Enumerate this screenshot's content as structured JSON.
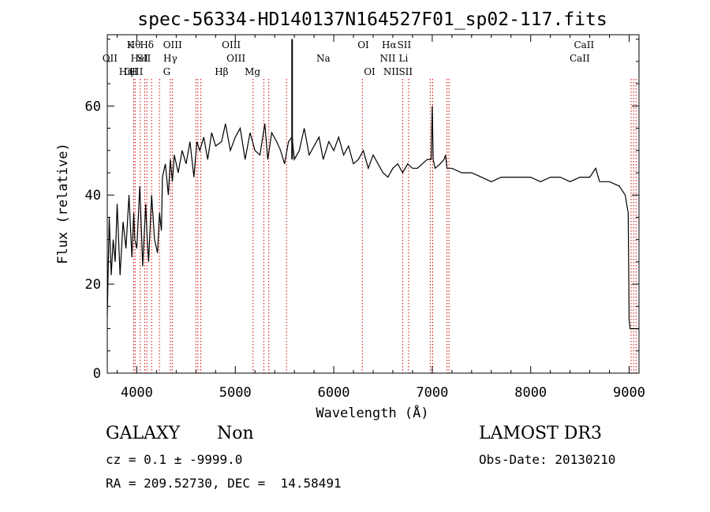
{
  "chart_data": {
    "type": "line",
    "title": "spec-56334-HD140137N164527F01_sp02-117.fits",
    "xlabel": "Wavelength (Å)",
    "ylabel": "Flux (relative)",
    "xlim": [
      3700,
      9100
    ],
    "ylim": [
      0,
      76
    ],
    "x_ticks": [
      4000,
      5000,
      6000,
      7000,
      8000,
      9000
    ],
    "y_ticks": [
      0,
      20,
      40,
      60
    ],
    "x_tick_labels": [
      "4000",
      "5000",
      "6000",
      "7000",
      "8000",
      "9000"
    ],
    "y_tick_labels": [
      "0",
      "20",
      "40",
      "60"
    ],
    "grid": false,
    "line_color": "#000000",
    "marker_color": "#cc0000",
    "spectrum": {
      "x": [
        3700,
        3720,
        3740,
        3760,
        3780,
        3800,
        3830,
        3860,
        3890,
        3920,
        3950,
        3968,
        3980,
        4000,
        4030,
        4060,
        4090,
        4101,
        4120,
        4150,
        4180,
        4210,
        4230,
        4250,
        4260,
        4290,
        4320,
        4340,
        4361,
        4380,
        4420,
        4460,
        4500,
        4540,
        4580,
        4610,
        4640,
        4680,
        4720,
        4760,
        4800,
        4861,
        4900,
        4950,
        5000,
        5050,
        5100,
        5150,
        5200,
        5250,
        5300,
        5330,
        5370,
        5420,
        5460,
        5500,
        5540,
        5577,
        5600,
        5650,
        5700,
        5750,
        5800,
        5850,
        5893,
        5950,
        6000,
        6050,
        6100,
        6150,
        6200,
        6250,
        6300,
        6350,
        6400,
        6450,
        6500,
        6550,
        6600,
        6650,
        6700,
        6750,
        6800,
        6850,
        6900,
        6950,
        6990,
        7000,
        7010,
        7030,
        7080,
        7120,
        7135,
        7150,
        7200,
        7300,
        7400,
        7500,
        7600,
        7700,
        7800,
        7900,
        8000,
        8100,
        8200,
        8300,
        8400,
        8500,
        8600,
        8660,
        8700,
        8800,
        8900,
        8960,
        8990,
        9000,
        9010,
        9100
      ],
      "y": [
        13,
        35,
        22,
        30,
        25,
        38,
        22,
        34,
        28,
        40,
        26,
        36,
        30,
        28,
        42,
        24,
        38,
        32,
        25,
        40,
        30,
        27,
        36,
        32,
        44,
        47,
        40,
        48,
        43,
        49,
        45,
        50,
        47,
        52,
        44,
        52,
        50,
        53,
        48,
        54,
        51,
        52,
        56,
        50,
        53,
        55,
        48,
        54,
        50,
        49,
        56,
        48,
        54,
        52,
        50,
        47,
        52,
        53,
        48,
        50,
        55,
        49,
        51,
        53,
        48,
        52,
        50,
        53,
        49,
        51,
        47,
        48,
        50,
        46,
        49,
        47,
        45,
        44,
        46,
        47,
        45,
        47,
        46,
        46,
        47,
        48,
        48,
        60,
        48,
        46,
        47,
        48,
        49,
        46,
        46,
        45,
        45,
        44,
        43,
        44,
        44,
        44,
        44,
        43,
        44,
        44,
        43,
        44,
        44,
        46,
        43,
        43,
        42,
        40,
        36,
        12,
        10,
        10
      ]
    },
    "spike": {
      "x": 5577,
      "y": 75
    },
    "line_ids": [
      {
        "label": "OII",
        "x": 3727,
        "row": 2
      },
      {
        "label": "OIII",
        "x": 3967,
        "row": 3
      },
      {
        "label": "Hθ",
        "x": 3970,
        "row": 1
      },
      {
        "label": "K",
        "x": 3934,
        "row": 1
      },
      {
        "label": "HeI",
        "x": 4026,
        "row": 2
      },
      {
        "label": "Hη",
        "x": 3889,
        "row": 3
      },
      {
        "label": "H",
        "x": 3968,
        "row": 3
      },
      {
        "label": "Hδ",
        "x": 4102,
        "row": 1
      },
      {
        "label": "SII",
        "x": 4072,
        "row": 2
      },
      {
        "label": "OIII",
        "x": 4363,
        "row": 1
      },
      {
        "label": "Hγ",
        "x": 4340,
        "row": 2
      },
      {
        "label": "G",
        "x": 4304,
        "row": 3
      },
      {
        "label": "OIII",
        "x": 4959,
        "row": 1
      },
      {
        "label": "OIII",
        "x": 5007,
        "row": 2
      },
      {
        "label": "Hβ",
        "x": 4861,
        "row": 3
      },
      {
        "label": "Mg",
        "x": 5175,
        "row": 3
      },
      {
        "label": "Na",
        "x": 5894,
        "row": 2
      },
      {
        "label": "OI",
        "x": 6300,
        "row": 1
      },
      {
        "label": "OI",
        "x": 6364,
        "row": 3
      },
      {
        "label": "Hα",
        "x": 6563,
        "row": 1
      },
      {
        "label": "SII",
        "x": 6716,
        "row": 1
      },
      {
        "label": "NII",
        "x": 6548,
        "row": 2
      },
      {
        "label": "Li",
        "x": 6708,
        "row": 2
      },
      {
        "label": "NII",
        "x": 6583,
        "row": 3
      },
      {
        "label": "SII",
        "x": 6731,
        "row": 3
      },
      {
        "label": "CaII",
        "x": 8542,
        "row": 1
      },
      {
        "label": "CaII",
        "x": 8498,
        "row": 2
      }
    ],
    "marker_lines_x": [
      3968,
      3982,
      4035,
      4080,
      4102,
      4150,
      4230,
      4340,
      4360,
      4600,
      4620,
      4650,
      5180,
      5290,
      5340,
      5520,
      6290,
      6700,
      6760,
      6980,
      7005,
      7150,
      7170,
      9020,
      9045,
      9070
    ]
  },
  "info": {
    "class_label": "GALAXY",
    "subclass_label": "Non",
    "survey_label": "LAMOST DR3",
    "cz_text": "cz = 0.1 ± -9999.0",
    "obs_date_text": "Obs-Date: 20130210",
    "radec_text": "RA = 209.52730, DEC =  14.58491"
  }
}
